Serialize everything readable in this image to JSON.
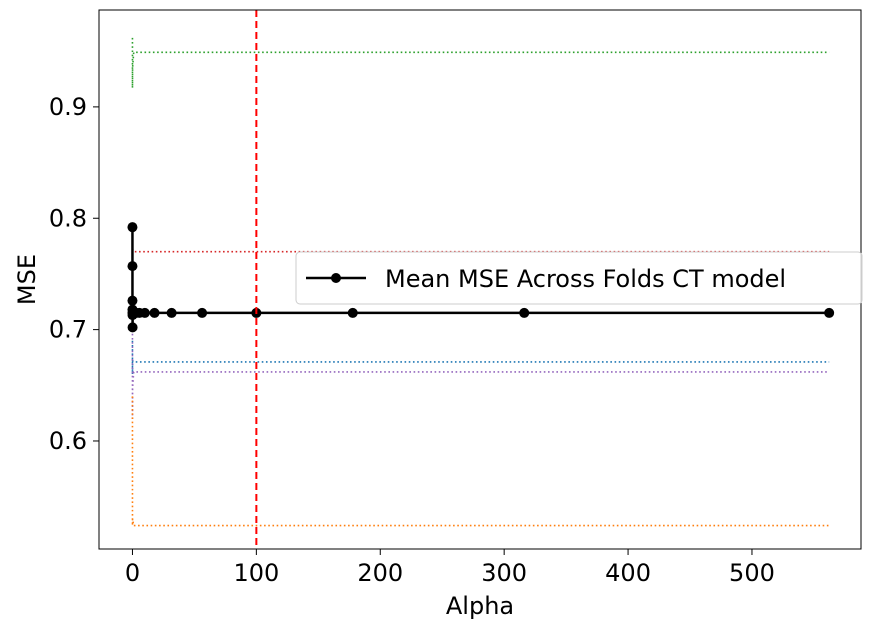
{
  "chart_data": {
    "type": "line",
    "title": "",
    "xlabel": "Alpha",
    "ylabel": "MSE",
    "xlim": [
      -27,
      588
    ],
    "ylim": [
      0.503,
      0.987
    ],
    "xticks": [
      0,
      100,
      200,
      300,
      400,
      500
    ],
    "xtick_labels": [
      "0",
      "100",
      "200",
      "300",
      "400",
      "500"
    ],
    "yticks": [
      0.6,
      0.7,
      0.8,
      0.9
    ],
    "ytick_labels": [
      "0.6",
      "0.7",
      "0.8",
      "0.9"
    ],
    "grid": false,
    "legend": {
      "placement": "center-right",
      "entries": [
        "Mean MSE Across Folds CT model"
      ]
    },
    "series": [
      {
        "name": "Mean MSE Across Folds CT model",
        "color": "#000000",
        "style": "solid-markers",
        "x": [
          0.001,
          0.002,
          0.005,
          0.01,
          0.03,
          0.06,
          0.1,
          0.18,
          0.32,
          0.56,
          1,
          1.8,
          3.2,
          5.6,
          10,
          17.8,
          31.6,
          56.2,
          100,
          177.8,
          316.2,
          562.3
        ],
        "y": [
          0.792,
          0.757,
          0.726,
          0.718,
          0.715,
          0.713,
          0.702,
          0.715,
          0.715,
          0.715,
          0.715,
          0.715,
          0.715,
          0.715,
          0.715,
          0.715,
          0.715,
          0.715,
          0.715,
          0.715,
          0.715,
          0.715
        ]
      },
      {
        "color": "#2ca02c",
        "style": "dotted",
        "x": [
          0.001,
          0.01,
          0.1,
          1,
          562.3
        ],
        "y": [
          0.962,
          0.917,
          0.935,
          0.949,
          0.949
        ]
      },
      {
        "color": "#d62728",
        "style": "dotted",
        "x": [
          0.001,
          0.01,
          0.1,
          1,
          562.3
        ],
        "y": [
          0.79,
          0.76,
          0.772,
          0.77,
          0.77
        ]
      },
      {
        "color": "#1f77b4",
        "style": "dotted",
        "x": [
          0.001,
          0.01,
          0.1,
          1,
          562.3
        ],
        "y": [
          0.69,
          0.66,
          0.672,
          0.671,
          0.671
        ]
      },
      {
        "color": "#9467bd",
        "style": "dotted",
        "x": [
          0.001,
          0.01,
          0.1,
          1,
          562.3
        ],
        "y": [
          0.7,
          0.62,
          0.648,
          0.662,
          0.662
        ]
      },
      {
        "color": "#ff7f0e",
        "style": "dotted",
        "x": [
          0.001,
          0.01,
          0.1,
          1,
          562.3
        ],
        "y": [
          0.64,
          0.524,
          0.53,
          0.524,
          0.524
        ]
      }
    ],
    "vline": {
      "x": 100,
      "color": "#ff0000",
      "style": "dashed"
    }
  }
}
